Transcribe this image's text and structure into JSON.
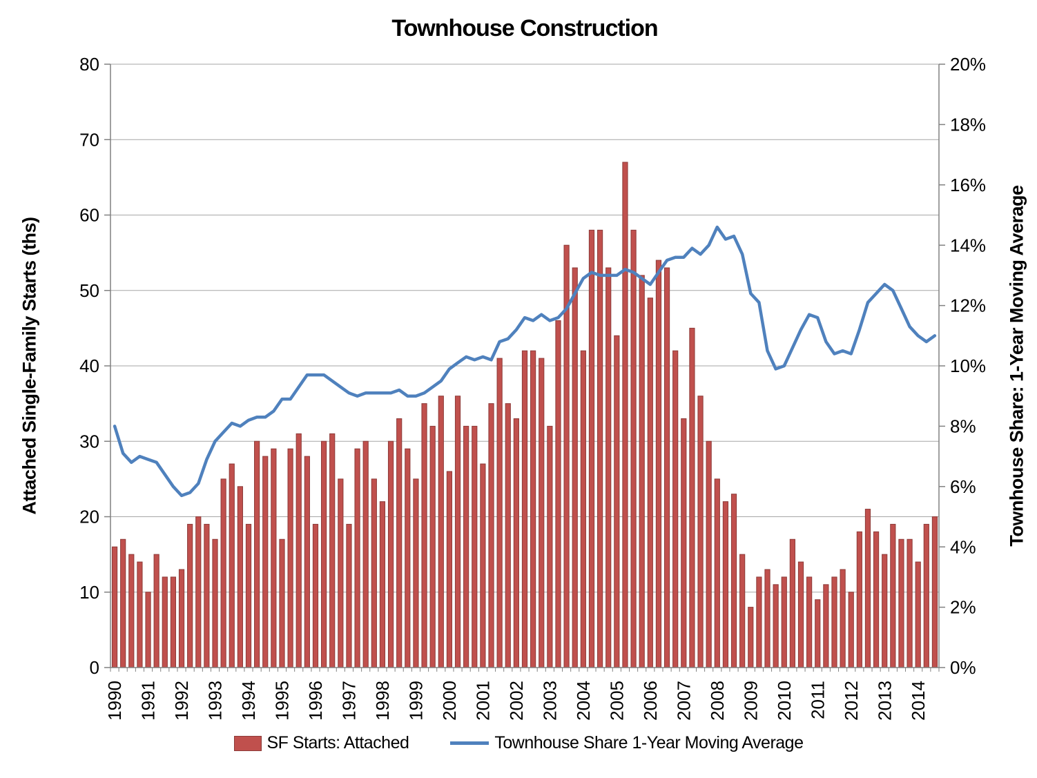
{
  "title": "Townhouse Construction",
  "left_axis": {
    "title": "Attached Single-Family Starts (ths)",
    "min": 0,
    "max": 80,
    "step": 10,
    "tick_labels": [
      "0",
      "10",
      "20",
      "30",
      "40",
      "50",
      "60",
      "70",
      "80"
    ]
  },
  "right_axis": {
    "title": "Townhouse Share: 1-Year Moving Average",
    "min": 0,
    "max": 20,
    "step": 2,
    "tick_labels": [
      "0%",
      "2%",
      "4%",
      "6%",
      "8%",
      "10%",
      "12%",
      "14%",
      "16%",
      "18%",
      "20%"
    ]
  },
  "legend": {
    "bar_label": "SF Starts: Attached",
    "line_label": "Townhouse Share 1-Year Moving Average"
  },
  "colors": {
    "bar_fill": "#C0504D",
    "bar_border": "#8C3A38",
    "line": "#4F81BD",
    "gridline": "#A6A6A6",
    "axis": "#808080",
    "text": "#000000"
  },
  "chart_data": {
    "type": "bar+line",
    "x_unit": "quarterly",
    "year_labels": [
      "1990",
      "1991",
      "1992",
      "1993",
      "1994",
      "1995",
      "1996",
      "1997",
      "1998",
      "1999",
      "2000",
      "2001",
      "2002",
      "2003",
      "2004",
      "2005",
      "2006",
      "2007",
      "2008",
      "2009",
      "2010",
      "2011",
      "2012",
      "2013",
      "2014"
    ],
    "quarters_per_year": 4,
    "last_year_quarters": 3,
    "series": [
      {
        "name": "SF Starts: Attached",
        "type": "bar",
        "axis": "left",
        "values": [
          16,
          17,
          15,
          14,
          10,
          15,
          12,
          12,
          13,
          19,
          20,
          19,
          17,
          25,
          27,
          24,
          19,
          30,
          28,
          29,
          17,
          29,
          31,
          28,
          19,
          30,
          31,
          25,
          19,
          29,
          30,
          25,
          22,
          30,
          33,
          29,
          25,
          35,
          32,
          36,
          26,
          36,
          32,
          32,
          27,
          35,
          41,
          35,
          33,
          42,
          42,
          41,
          32,
          46,
          56,
          53,
          42,
          58,
          58,
          53,
          44,
          67,
          58,
          52,
          49,
          54,
          53,
          42,
          33,
          45,
          36,
          30,
          25,
          22,
          23,
          15,
          8,
          12,
          13,
          11,
          12,
          17,
          14,
          12,
          9,
          11,
          12,
          13,
          10,
          18,
          21,
          18,
          15,
          19,
          17,
          17,
          14,
          19,
          20
        ]
      },
      {
        "name": "Townhouse Share 1-Year Moving Average",
        "type": "line",
        "axis": "right",
        "values": [
          8.0,
          7.1,
          6.8,
          7.0,
          6.9,
          6.8,
          6.4,
          6.0,
          5.7,
          5.8,
          6.1,
          6.9,
          7.5,
          7.8,
          8.1,
          8.0,
          8.2,
          8.3,
          8.3,
          8.5,
          8.9,
          8.9,
          9.3,
          9.7,
          9.7,
          9.7,
          9.5,
          9.3,
          9.1,
          9.0,
          9.1,
          9.1,
          9.1,
          9.1,
          9.2,
          9.0,
          9.0,
          9.1,
          9.3,
          9.5,
          9.9,
          10.1,
          10.3,
          10.2,
          10.3,
          10.2,
          10.8,
          10.9,
          11.2,
          11.6,
          11.5,
          11.7,
          11.5,
          11.6,
          11.9,
          12.4,
          12.9,
          13.1,
          13.0,
          13.0,
          13.0,
          13.2,
          13.1,
          12.9,
          12.7,
          13.1,
          13.5,
          13.6,
          13.6,
          13.9,
          13.7,
          14.0,
          14.6,
          14.2,
          14.3,
          13.7,
          12.4,
          12.1,
          10.5,
          9.9,
          10.0,
          10.6,
          11.2,
          11.7,
          11.6,
          10.8,
          10.4,
          10.5,
          10.4,
          11.2,
          12.1,
          12.4,
          12.7,
          12.5,
          11.9,
          11.3,
          11.0,
          10.8,
          11.0
        ]
      }
    ],
    "left_ylim": [
      0,
      80
    ],
    "right_ylim": [
      0,
      20
    ],
    "grid": true,
    "legend_position": "bottom"
  }
}
